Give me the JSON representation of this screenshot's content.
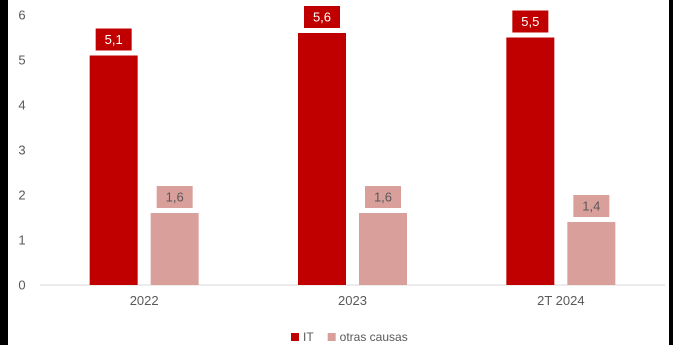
{
  "chart_data": {
    "type": "bar",
    "categories": [
      "2022",
      "2023",
      "2T 2024"
    ],
    "series": [
      {
        "name": "IT",
        "values": [
          5.1,
          5.6,
          5.5
        ],
        "labels": [
          "5,1",
          "5,6",
          "5,5"
        ],
        "color": "#c00000",
        "label_text_color": "#ffffff"
      },
      {
        "name": "otras causas",
        "values": [
          1.6,
          1.6,
          1.4
        ],
        "labels": [
          "1,6",
          "1,6",
          "1,4"
        ],
        "color": "#d9a09b",
        "label_text_color": "#595959"
      }
    ],
    "y_ticks": [
      "0",
      "1",
      "2",
      "3",
      "4",
      "5",
      "6"
    ],
    "ylim": [
      0,
      6
    ],
    "grid": false,
    "legend": "bottom-center",
    "title": "",
    "xlabel": "",
    "ylabel": ""
  }
}
